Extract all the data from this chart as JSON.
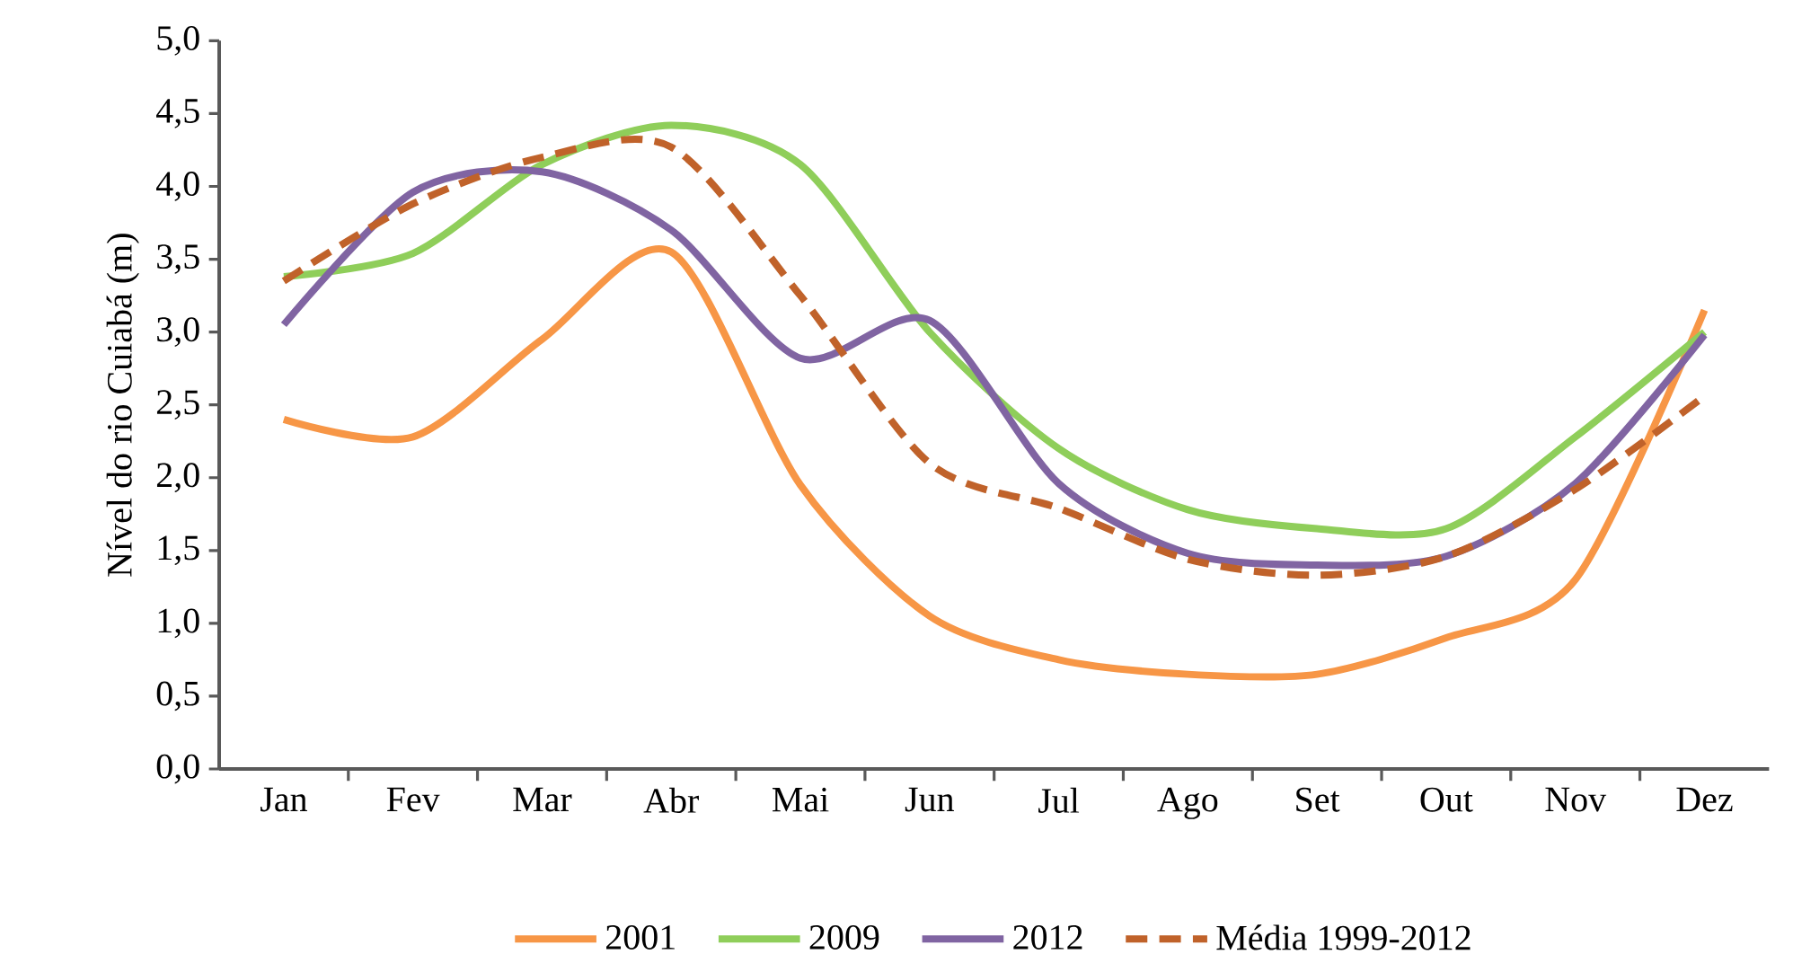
{
  "chart_data": {
    "type": "line",
    "ylabel": "Nível do rio Cuiabá (m)",
    "categories": [
      "Jan",
      "Fev",
      "Mar",
      "Abr",
      "Mai",
      "Jun",
      "Jul",
      "Ago",
      "Set",
      "Out",
      "Nov",
      "Dez"
    ],
    "series": [
      {
        "name": "2001",
        "color": "#f79646",
        "values": [
          2.4,
          2.28,
          2.95,
          3.55,
          1.95,
          1.05,
          0.75,
          0.65,
          0.65,
          0.9,
          1.3,
          3.15
        ]
      },
      {
        "name": "2009",
        "color": "#8fce5a",
        "values": [
          3.38,
          3.54,
          4.15,
          4.42,
          4.15,
          3.0,
          2.2,
          1.78,
          1.65,
          1.65,
          2.28,
          3.0
        ]
      },
      {
        "name": "2012",
        "color": "#8064a2",
        "values": [
          3.05,
          3.96,
          4.1,
          3.7,
          2.82,
          3.08,
          1.96,
          1.48,
          1.4,
          1.46,
          1.96,
          2.98
        ]
      },
      {
        "name": "Média 1999-2012",
        "color": "#c0622a",
        "line_style": "dashed",
        "values": [
          3.35,
          3.88,
          4.2,
          4.27,
          3.25,
          2.1,
          1.79,
          1.44,
          1.33,
          1.46,
          1.92,
          2.56
        ]
      }
    ],
    "ylim": [
      0,
      5
    ],
    "yticks": [
      {
        "value": 0,
        "label": "0,0"
      },
      {
        "value": 0.5,
        "label": "0,5"
      },
      {
        "value": 1,
        "label": "1,0"
      },
      {
        "value": 1.5,
        "label": "1,5"
      },
      {
        "value": 2,
        "label": "2,0"
      },
      {
        "value": 2.5,
        "label": "2,5"
      },
      {
        "value": 3,
        "label": "3,0"
      },
      {
        "value": 3.5,
        "label": "3,5"
      },
      {
        "value": 4,
        "label": "4,0"
      },
      {
        "value": 4.5,
        "label": "4,5"
      },
      {
        "value": 5,
        "label": "5,0"
      }
    ],
    "legend": "bottom",
    "grid": false,
    "marker": "none",
    "line_style": "solid"
  }
}
